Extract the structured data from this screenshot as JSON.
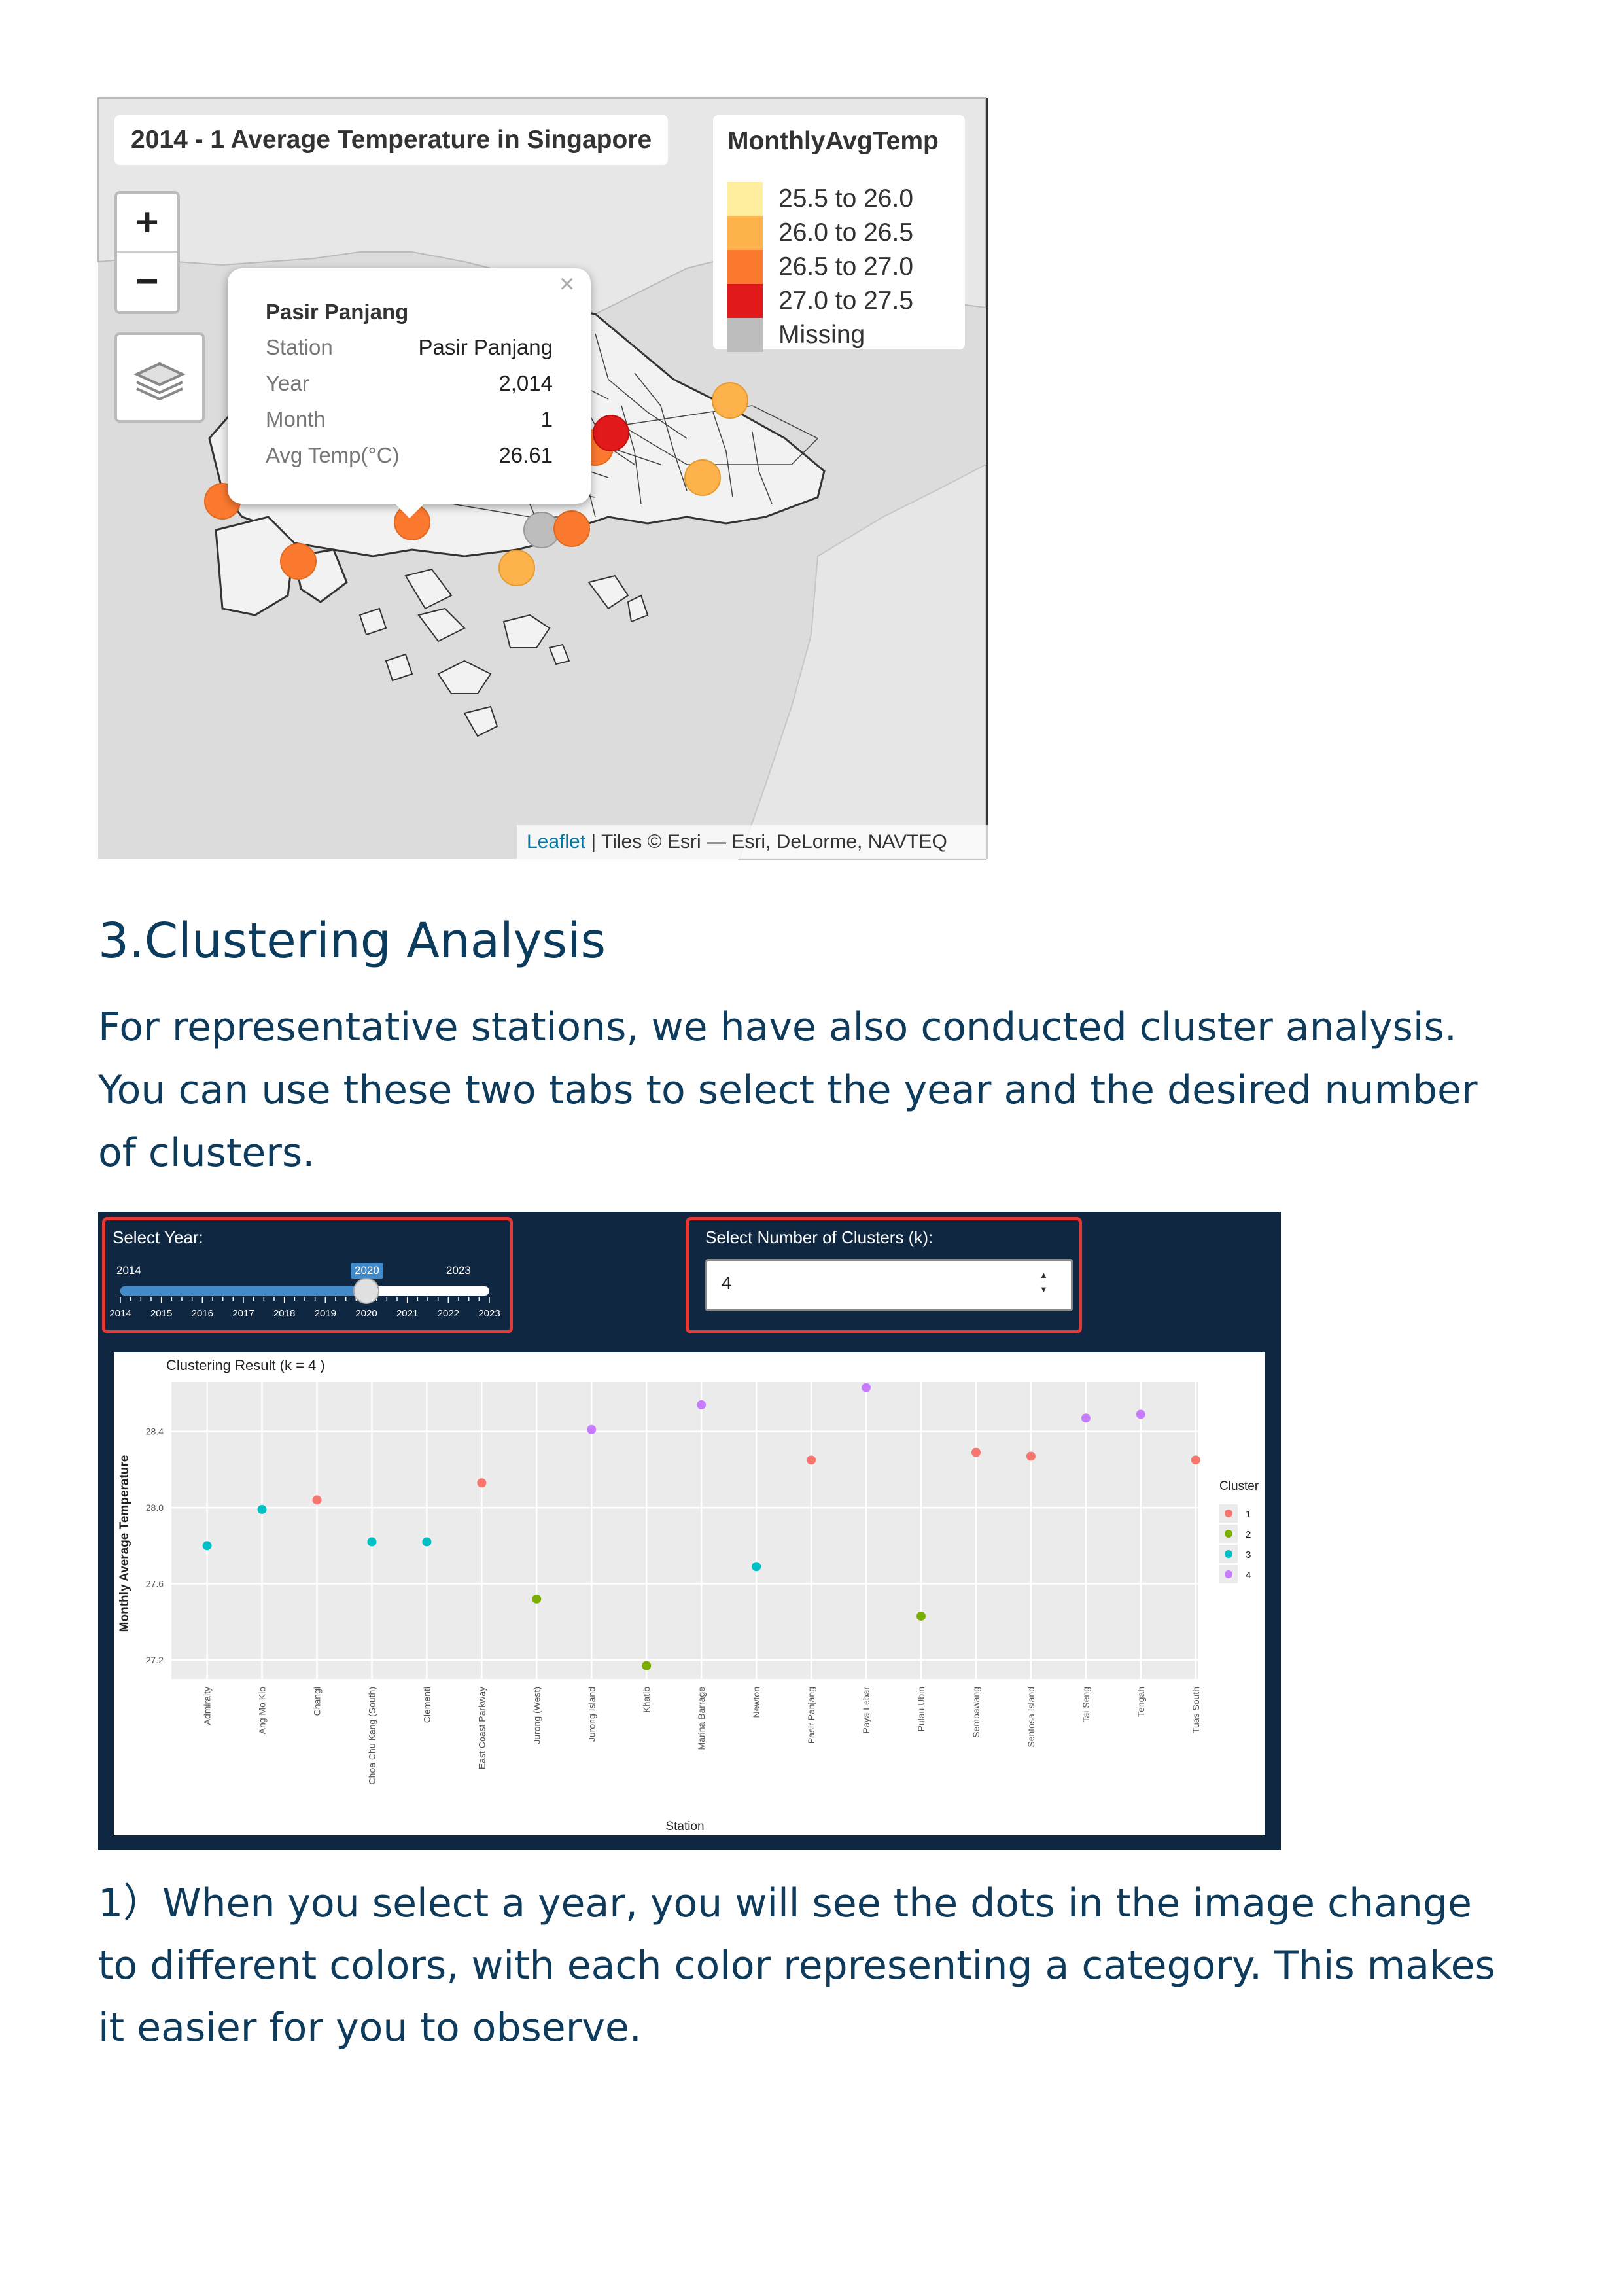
{
  "map": {
    "title": "2014 - 1 Average Temperature in Singapore",
    "zoom_in": "+",
    "zoom_out": "−",
    "legend": {
      "title": "MonthlyAvgTemp",
      "items": [
        {
          "label": "25.5 to 26.0",
          "color": "#ffeda0"
        },
        {
          "label": "26.0 to 26.5",
          "color": "#feb24c"
        },
        {
          "label": "26.5 to 27.0",
          "color": "#fc7a30"
        },
        {
          "label": "27.0 to 27.5",
          "color": "#e31a1c"
        },
        {
          "label": "Missing",
          "color": "#bdbdbd"
        }
      ]
    },
    "popup": {
      "heading": "Pasir Panjang",
      "close": "×",
      "rows": [
        {
          "key": "Station",
          "value": "Pasir Panjang"
        },
        {
          "key": "Year",
          "value": "2,014"
        },
        {
          "key": "Month",
          "value": "1"
        },
        {
          "key": "Avg Temp(°C)",
          "value": "26.61"
        }
      ]
    },
    "attribution_link": "Leaflet",
    "attribution_text": " | Tiles © Esri — Esri, DeLorme, NAVTEQ"
  },
  "section": {
    "heading": "3.Clustering Analysis",
    "intro": "For representative stations, we have also conducted cluster analysis. You can use these two tabs to select the year and the desired number of clusters.",
    "note": "1）When you select a year, you will see the dots in the image change to different colors, with each color representing a category. This makes it easier for you to observe."
  },
  "dashboard": {
    "year_label": "Select Year:",
    "slider_min": "2014",
    "slider_max": "2023",
    "slider_value": "2020",
    "slider_value_num": 2020,
    "slider_ticks": [
      "2014",
      "2015",
      "2016",
      "2017",
      "2018",
      "2019",
      "2020",
      "2021",
      "2022",
      "2023"
    ],
    "k_label": "Select Number of Clusters (k):",
    "k_value": "4",
    "spin_up": "▲",
    "spin_down": "▼"
  },
  "chart_data": {
    "type": "scatter",
    "title": "Clustering Result (k = 4 )",
    "xlabel": "Station",
    "ylabel": "Monthly Average Temperature",
    "ylim": [
      27.1,
      28.66
    ],
    "yticks": [
      "27.2",
      "27.6",
      "28.0",
      "28.4"
    ],
    "grid": true,
    "legend": {
      "title": "Cluster",
      "position": "right"
    },
    "cluster_colors": {
      "1": "#f8766d",
      "2": "#7cae00",
      "3": "#00bfc4",
      "4": "#c77cff"
    },
    "points": [
      {
        "station": "Admiralty",
        "value": 27.8,
        "cluster": "3"
      },
      {
        "station": "Ang Mo Kio",
        "value": 27.99,
        "cluster": "3"
      },
      {
        "station": "Changi",
        "value": 28.04,
        "cluster": "1"
      },
      {
        "station": "Choa Chu Kang (South)",
        "value": 27.82,
        "cluster": "3"
      },
      {
        "station": "Clementi",
        "value": 27.82,
        "cluster": "3"
      },
      {
        "station": "East Coast Parkway",
        "value": 28.13,
        "cluster": "1"
      },
      {
        "station": "Jurong (West)",
        "value": 27.52,
        "cluster": "2"
      },
      {
        "station": "Jurong Island",
        "value": 28.41,
        "cluster": "4"
      },
      {
        "station": "Khatib",
        "value": 27.17,
        "cluster": "2"
      },
      {
        "station": "Marina Barrage",
        "value": 28.54,
        "cluster": "4"
      },
      {
        "station": "Newton",
        "value": 27.69,
        "cluster": "3"
      },
      {
        "station": "Pasir Panjang",
        "value": 28.25,
        "cluster": "1"
      },
      {
        "station": "Paya Lebar",
        "value": 28.63,
        "cluster": "4"
      },
      {
        "station": "Pulau Ubin",
        "value": 27.43,
        "cluster": "2"
      },
      {
        "station": "Sembawang",
        "value": 28.29,
        "cluster": "1"
      },
      {
        "station": "Sentosa Island",
        "value": 28.27,
        "cluster": "1"
      },
      {
        "station": "Tai Seng",
        "value": 28.47,
        "cluster": "4"
      },
      {
        "station": "Tengah",
        "value": 28.49,
        "cluster": "4"
      },
      {
        "station": "Tuas South",
        "value": 28.25,
        "cluster": "1"
      }
    ]
  }
}
